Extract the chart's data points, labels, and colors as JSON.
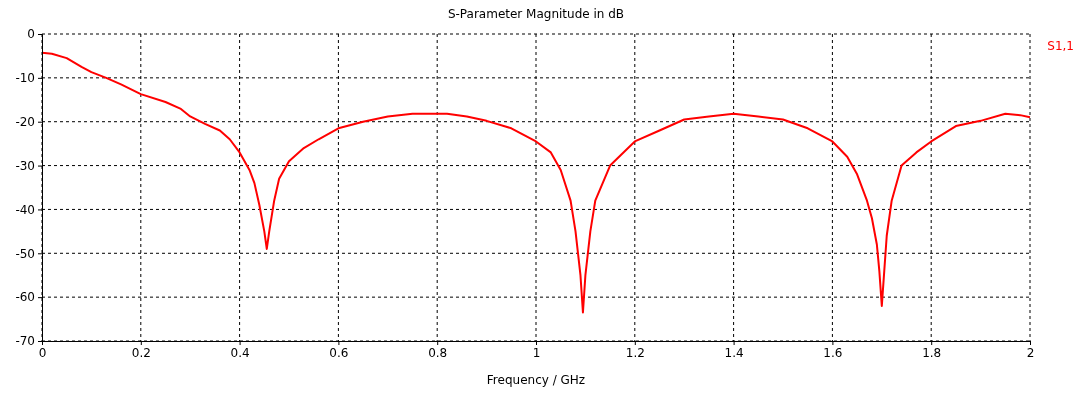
{
  "chart_data": {
    "type": "line",
    "title": "S-Parameter Magnitude in dB",
    "xlabel": "Frequency / GHz",
    "xlim": [
      0,
      2
    ],
    "xticks": [
      0,
      0.2,
      0.4,
      0.6,
      0.8,
      1,
      1.2,
      1.4,
      1.6,
      1.8,
      2
    ],
    "ylim": [
      -70,
      0
    ],
    "yticks": [
      -70,
      -60,
      -50,
      -40,
      -30,
      -20,
      -10,
      0
    ],
    "grid": true,
    "legend": "top right",
    "marker": "none",
    "line_style": "solid",
    "series": [
      {
        "name": "S1,1",
        "color": "#ff0000",
        "x": [
          0,
          0.02,
          0.05,
          0.08,
          0.1,
          0.13,
          0.16,
          0.2,
          0.25,
          0.28,
          0.3,
          0.33,
          0.36,
          0.38,
          0.4,
          0.42,
          0.43,
          0.44,
          0.45,
          0.455,
          0.46,
          0.47,
          0.48,
          0.5,
          0.53,
          0.56,
          0.6,
          0.65,
          0.7,
          0.75,
          0.82,
          0.86,
          0.9,
          0.95,
          1,
          1.03,
          1.05,
          1.07,
          1.08,
          1.09,
          1.095,
          1.1,
          1.11,
          1.12,
          1.15,
          1.2,
          1.25,
          1.3,
          1.35,
          1.4,
          1.45,
          1.5,
          1.55,
          1.6,
          1.63,
          1.65,
          1.67,
          1.68,
          1.69,
          1.695,
          1.7,
          1.705,
          1.71,
          1.72,
          1.74,
          1.77,
          1.8,
          1.85,
          1.9,
          1.95,
          1.98,
          2
        ],
        "values": [
          -4.3,
          -4.5,
          -5.5,
          -7.5,
          -8.7,
          -10,
          -11.5,
          -13.7,
          -15.5,
          -17,
          -18.8,
          -20.5,
          -22,
          -24,
          -27,
          -31,
          -34,
          -39,
          -45,
          -49,
          -45,
          -38,
          -33,
          -29,
          -26,
          -24,
          -21.5,
          -20,
          -18.8,
          -18.2,
          -18.2,
          -18.8,
          -19.8,
          -21.5,
          -24.5,
          -27,
          -31,
          -38,
          -45,
          -55,
          -63.5,
          -55,
          -45,
          -38,
          -30,
          -24.5,
          -22,
          -19.5,
          -18.8,
          -18.2,
          -18.8,
          -19.5,
          -21.5,
          -24.5,
          -28,
          -32,
          -38,
          -42,
          -48,
          -54,
          -62,
          -54,
          -46,
          -38,
          -30,
          -27,
          -24.5,
          -21,
          -19.8,
          -18.2,
          -18.5,
          -19
        ]
      }
    ]
  }
}
